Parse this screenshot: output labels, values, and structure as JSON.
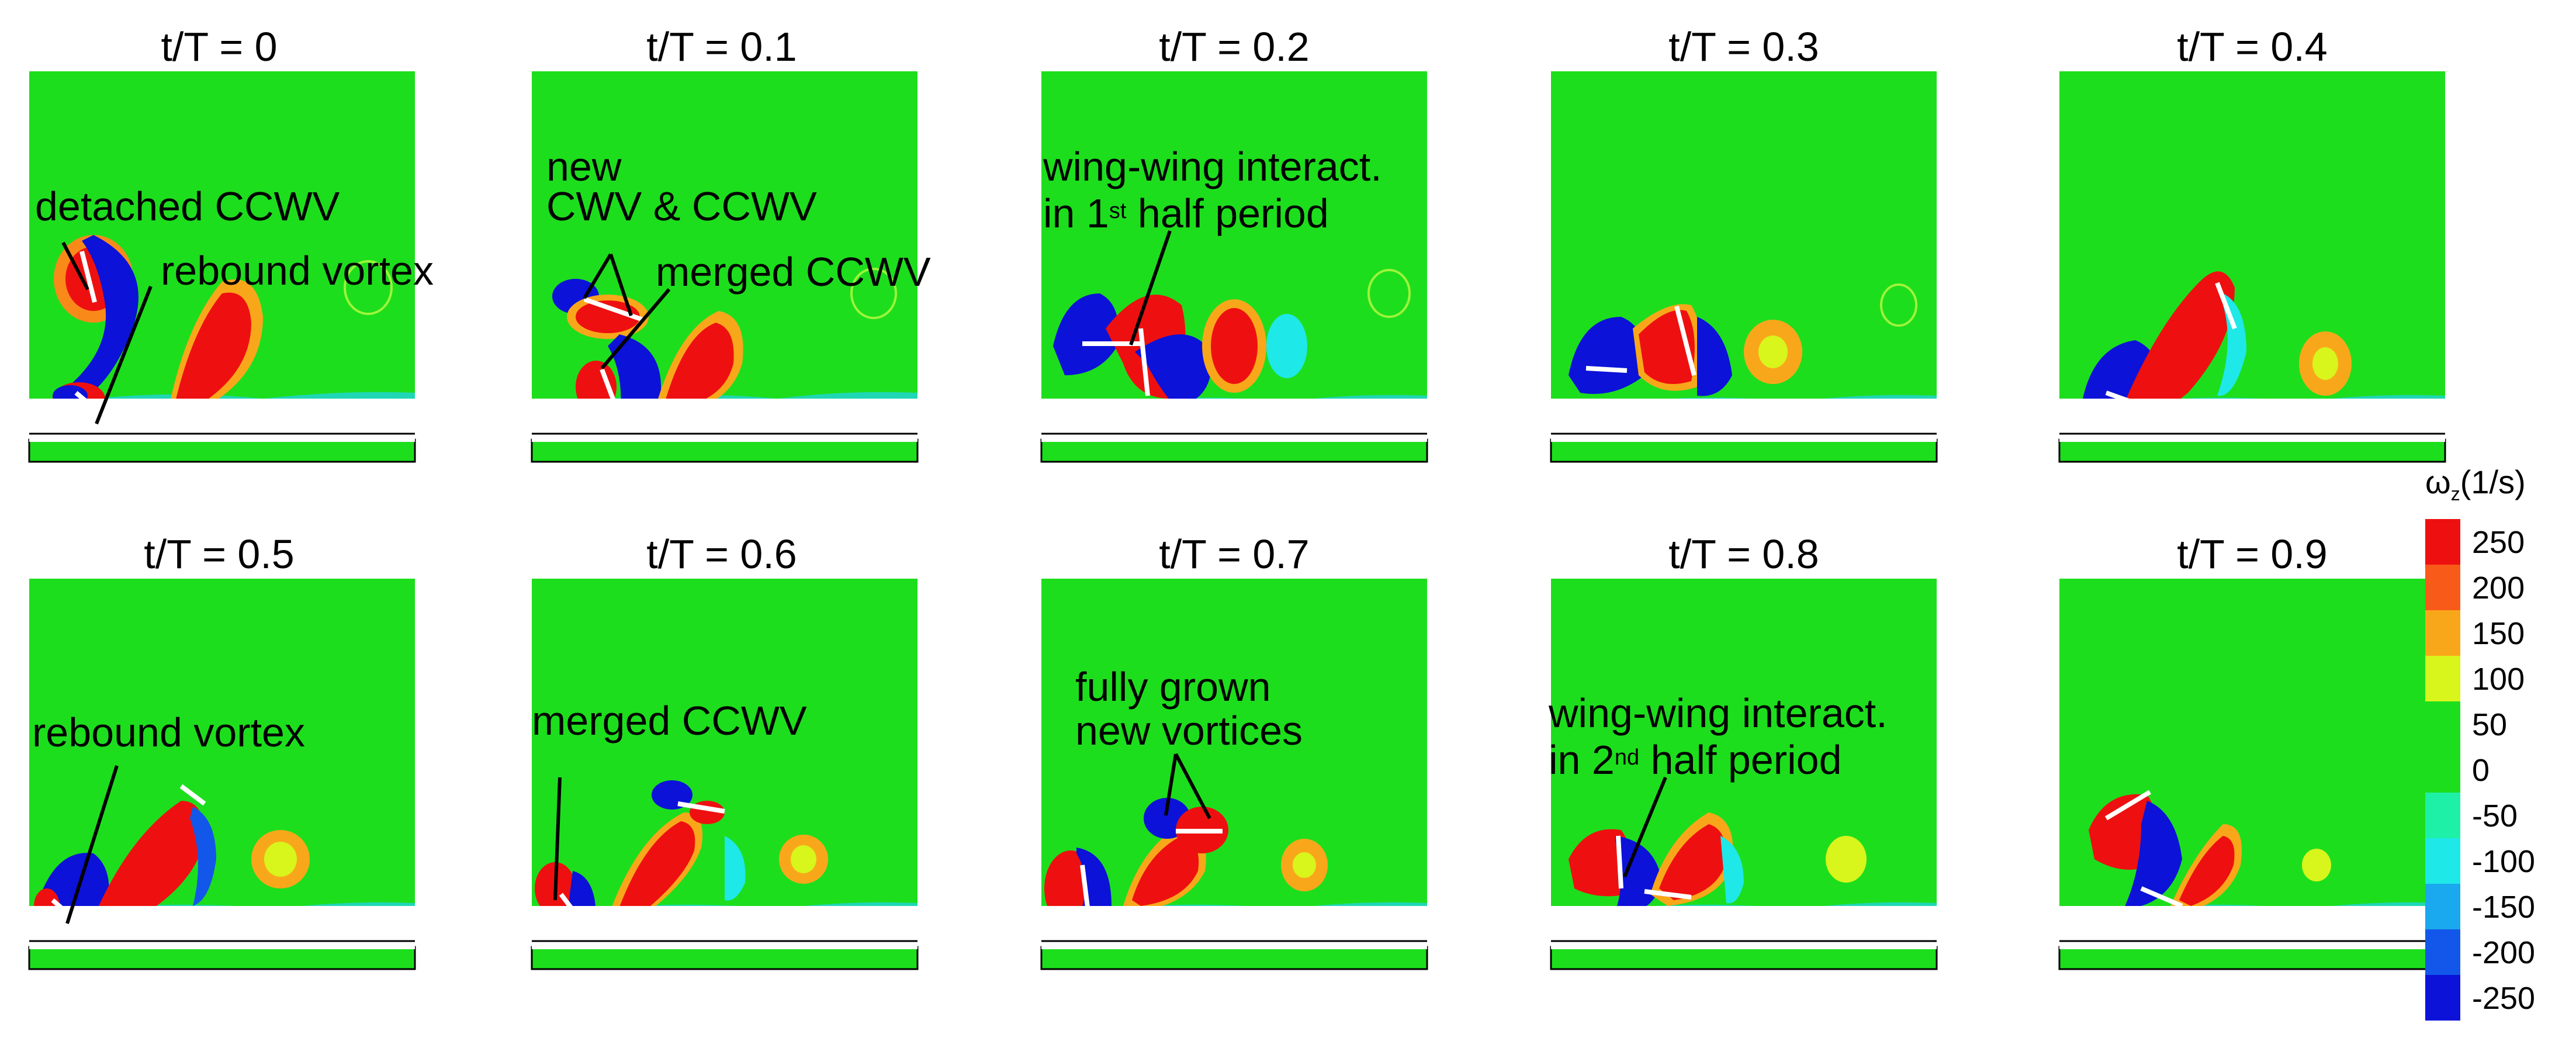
{
  "frames": [
    {
      "title": "t/T = 0"
    },
    {
      "title": "t/T = 0.1"
    },
    {
      "title": "t/T = 0.2"
    },
    {
      "title": "t/T = 0.3"
    },
    {
      "title": "t/T = 0.4"
    },
    {
      "title": "t/T = 0.5"
    },
    {
      "title": "t/T = 0.6"
    },
    {
      "title": "t/T = 0.7"
    },
    {
      "title": "t/T = 0.8"
    },
    {
      "title": "t/T = 0.9"
    }
  ],
  "annotations": {
    "detached_ccwv": "detached CCWV",
    "rebound_vortex_1": "rebound vortex",
    "new_cwv_ccwv_line1": "new",
    "new_cwv_ccwv_line2": "CWV & CCWV",
    "merged_ccwv_1": "merged CCWV",
    "wing_interact_1_line1": "wing-wing interact.",
    "wing_interact_1_line2_pre": "in 1",
    "wing_interact_1_sup": "st",
    "wing_interact_1_line2_post": " half period",
    "rebound_vortex_2": "rebound vortex",
    "merged_ccwv_2": "merged CCWV",
    "fully_grown_line1": "fully grown",
    "fully_grown_line2": "new vortices",
    "wing_interact_2_line1": "wing-wing interact.",
    "wing_interact_2_line2_pre": "in 2",
    "wing_interact_2_sup": "nd",
    "wing_interact_2_line2_post": " half period"
  },
  "colorbar": {
    "symbol": "ω",
    "subscript": "z",
    "unit": "(1/s)",
    "levels": [
      "250",
      "200",
      "150",
      "100",
      "50",
      "0",
      "-50",
      "-100",
      "-150",
      "-200",
      "-250"
    ],
    "colors": [
      "#ee1010",
      "#f85a1a",
      "#f9a71a",
      "#d8f51c",
      "#1dde1d",
      "#1dde1d",
      "#1ff0a8",
      "#1ee8e8",
      "#1aa8ee",
      "#1257ea",
      "#0c12d8"
    ]
  },
  "colors": {
    "background_field": "#1dde1d",
    "positive_vortex": "#ee1010",
    "negative_vortex": "#0c12d8",
    "wing": "#ffffff"
  }
}
